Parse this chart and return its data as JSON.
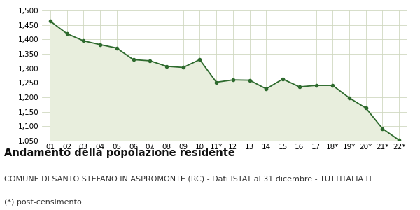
{
  "x_labels": [
    "01",
    "02",
    "03",
    "04",
    "05",
    "06",
    "07",
    "08",
    "09",
    "10",
    "11*",
    "12",
    "13",
    "14",
    "15",
    "16",
    "17",
    "18*",
    "19*",
    "20*",
    "21*",
    "22*"
  ],
  "y_values": [
    1463,
    1420,
    1395,
    1382,
    1370,
    1330,
    1326,
    1307,
    1303,
    1330,
    1252,
    1260,
    1259,
    1229,
    1263,
    1236,
    1241,
    1241,
    1198,
    1163,
    1092,
    1052
  ],
  "line_color": "#2d6a2d",
  "fill_color": "#e8eedd",
  "marker_color": "#2d6a2d",
  "background_color": "#ffffff",
  "grid_color": "#d0d8c0",
  "ylim": [
    1050,
    1500
  ],
  "yticks": [
    1050,
    1100,
    1150,
    1200,
    1250,
    1300,
    1350,
    1400,
    1450,
    1500
  ],
  "title": "Andamento della popolazione residente",
  "subtitle": "COMUNE DI SANTO STEFANO IN ASPROMONTE (RC) - Dati ISTAT al 31 dicembre - TUTTITALIA.IT",
  "footnote": "(*) post-censimento",
  "title_fontsize": 10.5,
  "subtitle_fontsize": 8,
  "footnote_fontsize": 8
}
